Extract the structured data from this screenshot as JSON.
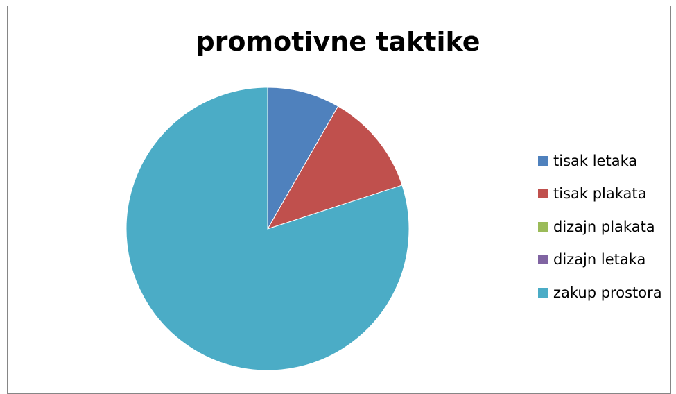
{
  "chart_data": {
    "type": "pie",
    "title": "promotivne taktike",
    "categories": [
      "tisak letaka",
      "tisak plakata",
      "dizajn plakata",
      "dizajn letaka",
      "zakup prostora"
    ],
    "values": [
      8.3,
      11.7,
      0,
      0,
      80.0
    ],
    "colors": [
      "#4F81BD",
      "#C0504D",
      "#9BBB59",
      "#8064A2",
      "#4BACC6"
    ],
    "legend_position": "right"
  }
}
